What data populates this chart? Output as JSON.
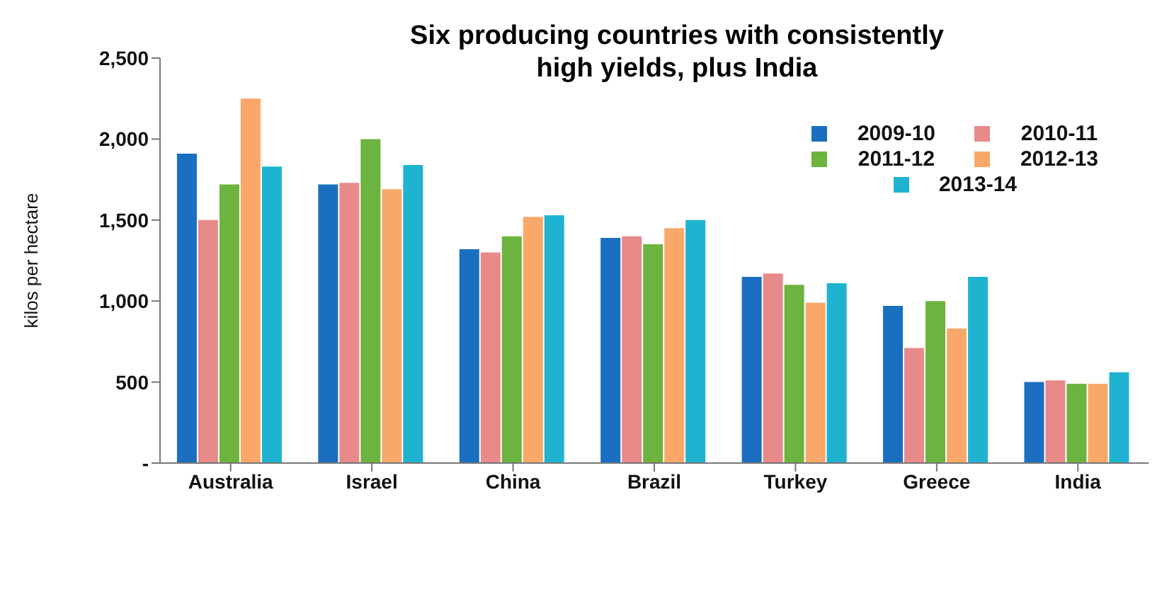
{
  "chart_data": {
    "type": "bar",
    "title": "Six producing countries with consistently high yields, plus India",
    "ylabel": "kilos per hectare",
    "categories": [
      "Australia",
      "Israel",
      "China",
      "Brazil",
      "Turkey",
      "Greece",
      "India"
    ],
    "series": [
      {
        "name": "2009-10",
        "color": "#1a6fc0",
        "values": [
          1910,
          1720,
          1320,
          1390,
          1150,
          970,
          500
        ]
      },
      {
        "name": "2010-11",
        "color": "#e88a8a",
        "values": [
          1500,
          1730,
          1300,
          1400,
          1170,
          710,
          510
        ]
      },
      {
        "name": "2011-12",
        "color": "#6db33f",
        "values": [
          1720,
          2000,
          1400,
          1350,
          1100,
          1000,
          490
        ]
      },
      {
        "name": "2012-13",
        "color": "#f9a86a",
        "values": [
          2250,
          1690,
          1520,
          1450,
          990,
          830,
          490
        ]
      },
      {
        "name": "2013-14",
        "color": "#1fb3d1",
        "values": [
          1830,
          1840,
          1530,
          1500,
          1110,
          1150,
          560
        ]
      }
    ],
    "ylim": [
      0,
      2500
    ],
    "yticks": [
      {
        "value": 0,
        "label": "-"
      },
      {
        "value": 500,
        "label": "500"
      },
      {
        "value": 1000,
        "label": "1,000"
      },
      {
        "value": 1500,
        "label": "1,500"
      },
      {
        "value": 2000,
        "label": "2,000"
      },
      {
        "value": 2500,
        "label": "2,500"
      }
    ],
    "grid": false,
    "legend": "top right"
  }
}
